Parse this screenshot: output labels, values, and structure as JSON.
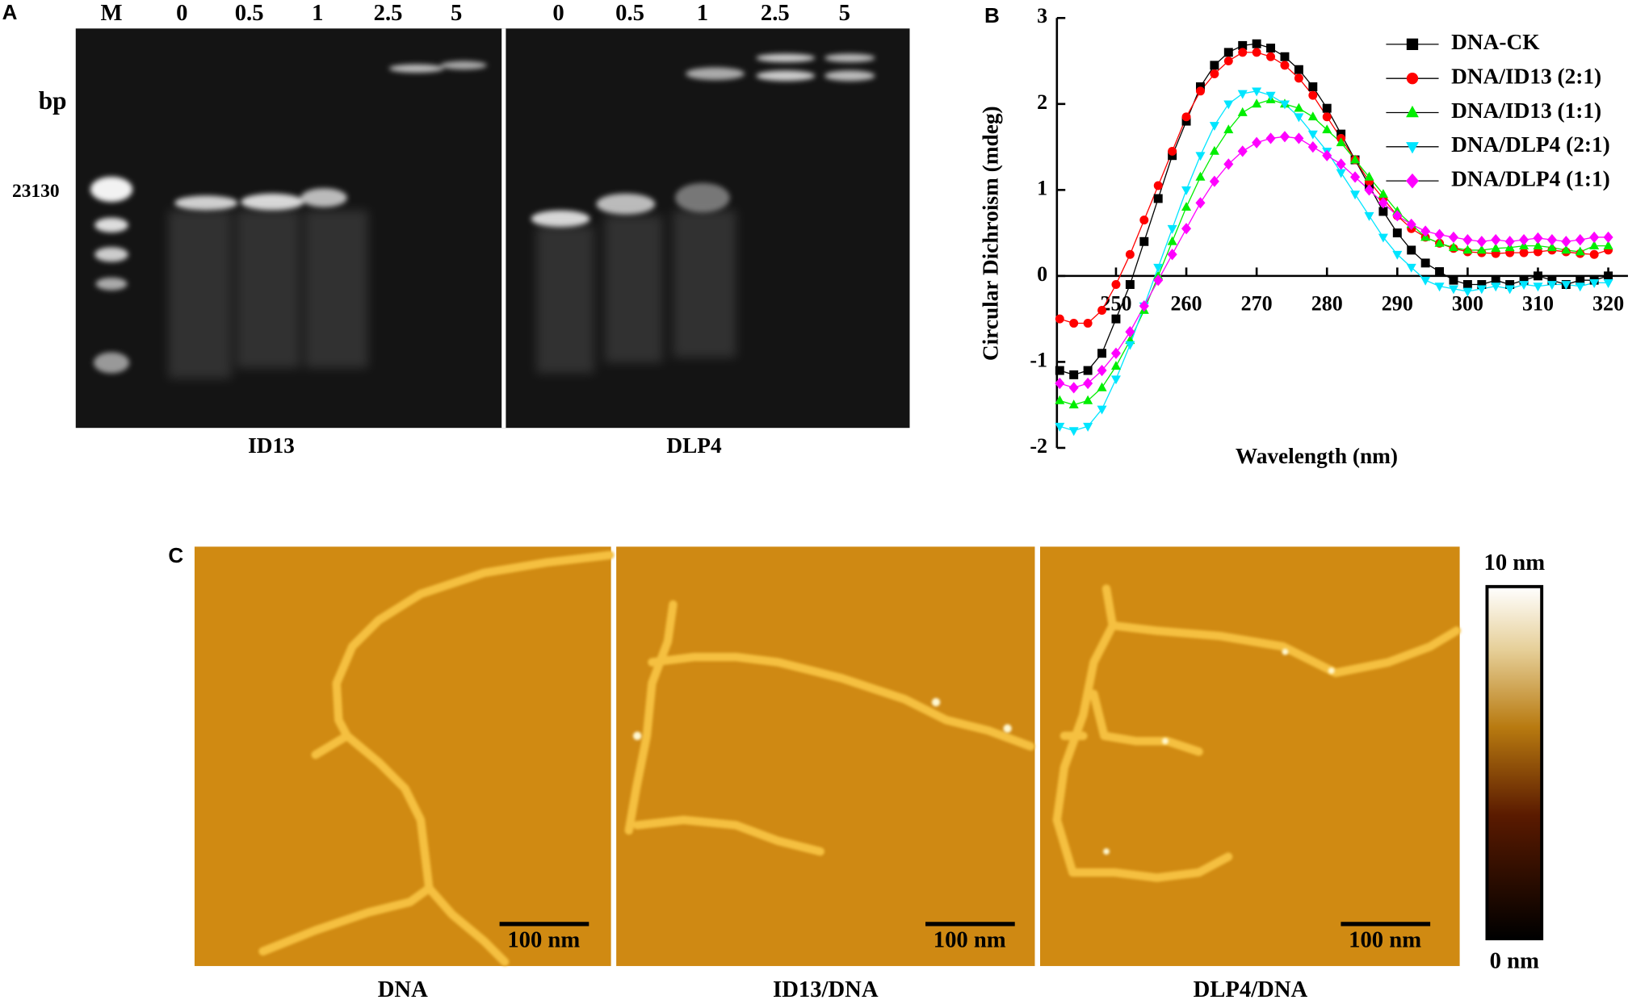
{
  "panel_labels": [
    "A",
    "B",
    "C"
  ],
  "gel": {
    "marker_lane": "M",
    "bp_label": "bp",
    "size_label": "23130",
    "lanes": [
      "0",
      "0.5",
      "1",
      "2.5",
      "5",
      "0",
      "0.5",
      "1",
      "2.5",
      "5"
    ],
    "groups": [
      "ID13",
      "DLP4"
    ]
  },
  "chart_data": {
    "type": "line",
    "x_label": "Wavelength (nm)",
    "y_label": "Circular Dichroism (mdeg)",
    "xlim": [
      241.6,
      322.8
    ],
    "ylim": [
      -2,
      3
    ],
    "xticks": [
      250,
      260,
      270,
      280,
      290,
      300,
      310,
      320
    ],
    "yticks": [
      -2,
      -1,
      0,
      1,
      2,
      3
    ],
    "legend": "upper right",
    "x": [
      242,
      244,
      246,
      248,
      250,
      252,
      254,
      256,
      258,
      260,
      262,
      264,
      266,
      268,
      270,
      272,
      274,
      276,
      278,
      280,
      282,
      284,
      286,
      288,
      290,
      292,
      294,
      296,
      298,
      300,
      302,
      304,
      306,
      308,
      310,
      312,
      314,
      316,
      318,
      320
    ],
    "series": [
      {
        "name": "DNA-CK",
        "color": "#000000",
        "marker": "square",
        "values": [
          -1.1,
          -1.15,
          -1.1,
          -0.9,
          -0.5,
          -0.1,
          0.4,
          0.9,
          1.4,
          1.8,
          2.2,
          2.45,
          2.6,
          2.68,
          2.7,
          2.65,
          2.55,
          2.4,
          2.2,
          1.95,
          1.65,
          1.35,
          1.05,
          0.75,
          0.5,
          0.3,
          0.15,
          0.05,
          -0.05,
          -0.1,
          -0.1,
          -0.05,
          -0.1,
          -0.05,
          0.0,
          -0.05,
          -0.1,
          -0.05,
          -0.05,
          0.0
        ]
      },
      {
        "name": "DNA/ID13 (2:1)",
        "color": "#ff0000",
        "marker": "circle",
        "values": [
          -0.5,
          -0.55,
          -0.55,
          -0.4,
          -0.1,
          0.25,
          0.65,
          1.05,
          1.45,
          1.85,
          2.15,
          2.35,
          2.5,
          2.6,
          2.6,
          2.55,
          2.45,
          2.3,
          2.1,
          1.85,
          1.6,
          1.35,
          1.1,
          0.9,
          0.7,
          0.55,
          0.45,
          0.38,
          0.32,
          0.28,
          0.27,
          0.26,
          0.27,
          0.27,
          0.28,
          0.3,
          0.28,
          0.26,
          0.25,
          0.3
        ]
      },
      {
        "name": "DNA/ID13 (1:1)",
        "color": "#00ee00",
        "marker": "triangle-up",
        "values": [
          -1.45,
          -1.5,
          -1.45,
          -1.3,
          -1.05,
          -0.75,
          -0.4,
          0.0,
          0.4,
          0.8,
          1.15,
          1.45,
          1.7,
          1.9,
          2.0,
          2.05,
          2.0,
          1.95,
          1.85,
          1.7,
          1.55,
          1.35,
          1.15,
          0.95,
          0.75,
          0.6,
          0.45,
          0.38,
          0.33,
          0.3,
          0.3,
          0.32,
          0.33,
          0.35,
          0.35,
          0.33,
          0.3,
          0.28,
          0.35,
          0.35
        ]
      },
      {
        "name": "DNA/DLP4 (2:1)",
        "color": "#00e5ff",
        "marker": "triangle-down",
        "values": [
          -1.75,
          -1.8,
          -1.75,
          -1.55,
          -1.2,
          -0.8,
          -0.35,
          0.1,
          0.55,
          1.0,
          1.4,
          1.75,
          2.0,
          2.12,
          2.15,
          2.1,
          2.0,
          1.85,
          1.65,
          1.45,
          1.2,
          0.95,
          0.7,
          0.45,
          0.25,
          0.1,
          -0.05,
          -0.12,
          -0.15,
          -0.18,
          -0.15,
          -0.12,
          -0.15,
          -0.1,
          -0.12,
          -0.1,
          -0.1,
          -0.12,
          -0.08,
          -0.08
        ]
      },
      {
        "name": "DNA/DLP4 (1:1)",
        "color": "#ff00ff",
        "marker": "diamond",
        "values": [
          -1.25,
          -1.3,
          -1.25,
          -1.1,
          -0.9,
          -0.65,
          -0.35,
          -0.05,
          0.25,
          0.55,
          0.85,
          1.1,
          1.3,
          1.45,
          1.55,
          1.6,
          1.62,
          1.6,
          1.5,
          1.4,
          1.3,
          1.15,
          1.0,
          0.85,
          0.7,
          0.6,
          0.52,
          0.48,
          0.45,
          0.42,
          0.4,
          0.42,
          0.4,
          0.42,
          0.44,
          0.42,
          0.4,
          0.42,
          0.45,
          0.45
        ]
      }
    ]
  },
  "afm": {
    "panels": [
      "DNA",
      "ID13/DNA",
      "DLP4/DNA"
    ],
    "scale_bar": "100 nm",
    "colorbar_max": "10 nm",
    "colorbar_min": "0 nm"
  }
}
